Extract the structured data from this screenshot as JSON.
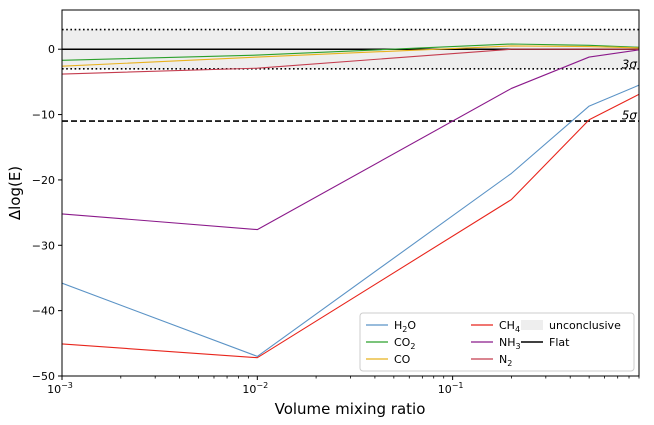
{
  "chart_data": {
    "type": "line",
    "xscale": "log",
    "xlabel": "Volume mixing ratio",
    "ylabel": "Δlog(E)",
    "xlim": [
      0.001,
      0.9
    ],
    "ylim": [
      -50,
      6
    ],
    "x_ticks": [
      {
        "value": 0.001,
        "base": "10",
        "exp": "−3"
      },
      {
        "value": 0.01,
        "base": "10",
        "exp": "−2"
      },
      {
        "value": 0.1,
        "base": "10",
        "exp": "−1"
      }
    ],
    "y_ticks": [
      {
        "value": 0,
        "label": "0"
      },
      {
        "value": -10,
        "label": "−10"
      },
      {
        "value": -20,
        "label": "−20"
      },
      {
        "value": -30,
        "label": "−30"
      },
      {
        "value": -40,
        "label": "−40"
      },
      {
        "value": -50,
        "label": "−50"
      }
    ],
    "x": [
      0.001,
      0.01,
      0.2,
      0.5,
      0.9
    ],
    "series": [
      {
        "name": "H2O",
        "base": "H",
        "sub": "2",
        "tail": "O",
        "color": "#5b93c6",
        "values": [
          -35.8,
          -47.0,
          -19.0,
          -8.7,
          -5.5
        ]
      },
      {
        "name": "CO2",
        "base": "CO",
        "sub": "2",
        "tail": "",
        "color": "#2ca02c",
        "values": [
          -1.7,
          -0.9,
          0.8,
          0.6,
          0.3
        ]
      },
      {
        "name": "CO",
        "base": "CO",
        "sub": "",
        "tail": "",
        "color": "#e8b21f",
        "values": [
          -2.6,
          -1.2,
          0.5,
          0.4,
          0.2
        ]
      },
      {
        "name": "CH4",
        "base": "CH",
        "sub": "4",
        "tail": "",
        "color": "#e8251c",
        "values": [
          -45.1,
          -47.2,
          -23.0,
          -10.8,
          -6.9
        ]
      },
      {
        "name": "NH3",
        "base": "NH",
        "sub": "3",
        "tail": "",
        "color": "#8b1a8b",
        "values": [
          -25.2,
          -27.6,
          -6.0,
          -1.2,
          -0.1
        ]
      },
      {
        "name": "N2",
        "base": "N",
        "sub": "2",
        "tail": "",
        "color": "#c43c4e",
        "values": [
          -3.8,
          -2.9,
          0.0,
          0.0,
          0.0
        ]
      }
    ],
    "reference_lines": [
      {
        "name": "Flat",
        "y": 0,
        "style": "solid",
        "color": "#000000"
      },
      {
        "name": "3σ",
        "y": 3,
        "style": "dotted",
        "color": "#000000"
      },
      {
        "name": "−3σ",
        "y": -3,
        "style": "dotted",
        "color": "#000000"
      },
      {
        "name": "5σ",
        "y": -11,
        "style": "dashed",
        "color": "#000000"
      }
    ],
    "annotations": [
      {
        "name": "3sigma",
        "text": "3σ",
        "y": -2
      },
      {
        "name": "5sigma",
        "text": "5σ",
        "y": -10
      }
    ],
    "unconclusive_band": {
      "label": "unconclusive",
      "y0": -3,
      "y1": 3,
      "color": "#eeeeee"
    },
    "legend": {
      "position": "lower-right",
      "ncol": 3,
      "flat_label": "Flat",
      "band_label": "unconclusive"
    }
  }
}
